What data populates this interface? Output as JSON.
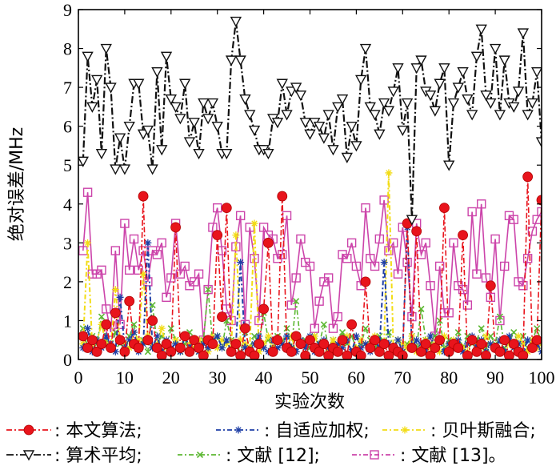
{
  "chart_data": {
    "type": "line",
    "title": "",
    "xlabel": "实验次数",
    "ylabel": "绝对误差/MHz",
    "xlim": [
      0,
      100
    ],
    "ylim": [
      0,
      9
    ],
    "xticks": [
      0,
      10,
      20,
      30,
      40,
      50,
      60,
      70,
      80,
      90,
      100
    ],
    "yticks": [
      0,
      1,
      2,
      3,
      4,
      5,
      6,
      7,
      8,
      9
    ],
    "grid": false,
    "legend_position": "bottom",
    "legend_separator": ":",
    "legend_terminator": "。",
    "legend_rows": [
      [
        "本文算法",
        "自适应加权",
        "贝叶斯融合"
      ],
      [
        "算术平均",
        "文献 [12]",
        "文献 [13]"
      ]
    ],
    "x": [
      1,
      2,
      3,
      4,
      5,
      6,
      7,
      8,
      9,
      10,
      11,
      12,
      13,
      14,
      15,
      16,
      17,
      18,
      19,
      20,
      21,
      22,
      23,
      24,
      25,
      26,
      27,
      28,
      29,
      30,
      31,
      32,
      33,
      34,
      35,
      36,
      37,
      38,
      39,
      40,
      41,
      42,
      43,
      44,
      45,
      46,
      47,
      48,
      49,
      50,
      51,
      52,
      53,
      54,
      55,
      56,
      57,
      58,
      59,
      60,
      61,
      62,
      63,
      64,
      65,
      66,
      67,
      68,
      69,
      70,
      71,
      72,
      73,
      74,
      75,
      76,
      77,
      78,
      79,
      80,
      81,
      82,
      83,
      84,
      85,
      86,
      87,
      88,
      89,
      90,
      91,
      92,
      93,
      94,
      95,
      96,
      97,
      98,
      99,
      100
    ],
    "series": [
      {
        "name": "本文算法",
        "color": "#e8141c",
        "marker": "circle-filled",
        "values": [
          0.6,
          0.3,
          0.5,
          0.2,
          0.4,
          0.9,
          0.3,
          1.2,
          0.5,
          0.2,
          1.5,
          0.4,
          0.3,
          4.2,
          0.5,
          1.0,
          0.3,
          0.1,
          0.4,
          0.2,
          3.4,
          0.3,
          0.6,
          0.2,
          0.5,
          0.3,
          0.1,
          0.5,
          0.4,
          3.2,
          1.1,
          3.9,
          0.2,
          0.4,
          0.1,
          0.8,
          0.2,
          0.1,
          0.4,
          1.3,
          3.0,
          0.2,
          0.5,
          4.2,
          0.3,
          0.2,
          0.6,
          0.4,
          0.1,
          0.5,
          0.3,
          0.2,
          0.4,
          0.1,
          0.3,
          0.2,
          0.5,
          0.1,
          0.9,
          0.2,
          0.1,
          2.0,
          0.3,
          0.5,
          0.2,
          0.4,
          0.1,
          0.3,
          0.2,
          0.1,
          3.5,
          0.3,
          3.3,
          0.2,
          0.4,
          0.1,
          0.3,
          0.5,
          3.9,
          0.2,
          0.4,
          0.3,
          3.2,
          0.1,
          0.5,
          0.2,
          0.4,
          0.1,
          1.9,
          0.3,
          0.2,
          0.5,
          0.1,
          0.4,
          0.2,
          0.1,
          4.7,
          0.3,
          0.5,
          4.1
        ]
      },
      {
        "name": "自适应加权",
        "color": "#1f3fa6",
        "marker": "star",
        "values": [
          0.3,
          0.8,
          0.2,
          0.5,
          0.3,
          0.6,
          0.4,
          0.2,
          1.6,
          0.3,
          0.5,
          0.7,
          0.2,
          0.4,
          3.0,
          0.3,
          0.6,
          0.2,
          0.5,
          0.3,
          0.4,
          0.2,
          0.6,
          0.3,
          0.5,
          0.2,
          0.4,
          0.3,
          0.5,
          0.6,
          0.3,
          0.5,
          0.2,
          0.4,
          2.5,
          0.3,
          0.2,
          0.4,
          0.6,
          0.3,
          0.2,
          0.5,
          0.3,
          0.4,
          0.6,
          0.3,
          0.2,
          0.5,
          0.3,
          0.6,
          0.2,
          0.4,
          0.5,
          0.3,
          0.2,
          0.4,
          0.3,
          0.5,
          0.2,
          0.6,
          0.3,
          0.4,
          0.2,
          0.5,
          0.3,
          2.5,
          0.4,
          0.3,
          0.5,
          0.2,
          3.4,
          0.3,
          0.5,
          0.4,
          0.2,
          0.6,
          0.3,
          0.5,
          0.2,
          0.4,
          0.3,
          0.5,
          0.2,
          0.4,
          0.6,
          0.3,
          0.5,
          0.2,
          0.4,
          0.3,
          0.5,
          0.2,
          0.6,
          0.3,
          0.4,
          0.2,
          0.5,
          0.3,
          0.4,
          0.2
        ]
      },
      {
        "name": "贝叶斯融合",
        "color": "#f2dc14",
        "marker": "star",
        "values": [
          0.4,
          3.0,
          0.3,
          0.5,
          0.9,
          0.4,
          0.3,
          1.8,
          0.5,
          0.4,
          0.3,
          0.7,
          0.5,
          2.2,
          0.6,
          0.3,
          0.4,
          0.8,
          0.3,
          0.2,
          0.5,
          0.3,
          0.6,
          0.4,
          0.3,
          0.5,
          0.4,
          0.2,
          0.6,
          0.3,
          0.5,
          0.4,
          0.3,
          3.2,
          0.5,
          0.4,
          0.3,
          3.5,
          0.2,
          0.4,
          0.6,
          0.3,
          0.5,
          0.4,
          0.3,
          0.6,
          0.2,
          0.4,
          0.3,
          0.5,
          0.6,
          0.3,
          0.4,
          0.2,
          0.5,
          0.3,
          0.4,
          0.6,
          0.2,
          0.3,
          0.5,
          0.4,
          0.3,
          0.6,
          0.2,
          0.4,
          4.8,
          0.3,
          0.5,
          0.4,
          0.3,
          0.6,
          0.2,
          0.4,
          0.5,
          0.3,
          0.4,
          0.2,
          0.6,
          0.3,
          0.5,
          0.4,
          0.3,
          0.2,
          0.5,
          0.4,
          0.3,
          0.6,
          0.4,
          0.3,
          0.5,
          0.2,
          0.4,
          0.3,
          0.6,
          0.4,
          0.2,
          0.5,
          0.3,
          0.4
        ]
      },
      {
        "name": "算术平均",
        "color": "#111111",
        "marker": "triangle-down",
        "values": [
          5.1,
          7.8,
          6.5,
          7.2,
          5.3,
          8.0,
          7.0,
          4.9,
          5.7,
          4.9,
          6.0,
          7.1,
          7.1,
          5.8,
          5.9,
          4.9,
          7.4,
          5.4,
          7.8,
          6.7,
          6.5,
          6.2,
          7.1,
          5.6,
          6.1,
          5.3,
          6.6,
          6.2,
          6.6,
          6.0,
          5.3,
          5.3,
          7.7,
          8.7,
          7.7,
          6.7,
          6.3,
          5.9,
          5.4,
          5.4,
          5.3,
          6.2,
          6.1,
          7.1,
          6.3,
          6.9,
          7.0,
          6.8,
          6.1,
          5.8,
          6.1,
          6.0,
          5.7,
          6.3,
          5.4,
          6.5,
          6.7,
          5.2,
          6.0,
          5.5,
          7.2,
          8.0,
          6.5,
          6.3,
          5.8,
          6.6,
          6.4,
          6.9,
          7.5,
          5.9,
          6.6,
          3.6,
          7.5,
          7.7,
          6.9,
          6.8,
          6.4,
          7.1,
          7.5,
          5.0,
          6.6,
          7.0,
          7.4,
          6.7,
          6.3,
          7.8,
          8.5,
          6.8,
          6.6,
          8.0,
          6.3,
          7.7,
          6.6,
          6.5,
          6.9,
          8.4,
          6.3,
          6.6,
          7.4,
          5.6
        ]
      },
      {
        "name": "文献 [12]",
        "color": "#5cb832",
        "marker": "cross",
        "values": [
          0.8,
          0.3,
          0.6,
          0.4,
          1.1,
          0.5,
          0.3,
          0.7,
          0.4,
          0.2,
          0.6,
          0.9,
          0.3,
          0.5,
          0.2,
          1.4,
          0.4,
          0.6,
          0.3,
          0.8,
          0.5,
          0.2,
          0.4,
          0.7,
          0.3,
          0.2,
          0.5,
          1.8,
          0.4,
          0.6,
          0.3,
          1.0,
          0.5,
          0.4,
          0.2,
          0.7,
          0.3,
          0.6,
          0.4,
          1.2,
          0.5,
          0.3,
          0.6,
          0.4,
          0.8,
          0.3,
          1.5,
          0.4,
          0.5,
          0.3,
          0.6,
          0.4,
          0.9,
          0.3,
          0.5,
          0.2,
          0.7,
          0.4,
          0.6,
          0.3,
          0.4,
          0.8,
          0.5,
          0.3,
          0.6,
          0.4,
          0.7,
          0.3,
          0.5,
          0.2,
          0.4,
          0.6,
          0.3,
          1.3,
          0.5,
          0.4,
          0.6,
          1.0,
          0.3,
          0.5,
          0.4,
          0.7,
          0.3,
          0.6,
          0.4,
          0.5,
          0.8,
          0.3,
          0.6,
          0.4,
          1.1,
          0.3,
          0.5,
          0.7,
          0.4,
          0.6,
          0.3,
          0.5,
          0.8,
          0.4
        ]
      },
      {
        "name": "文献 [13]",
        "color": "#cc44aa",
        "marker": "square-open",
        "values": [
          2.8,
          4.3,
          2.2,
          2.2,
          2.3,
          1.3,
          0.7,
          2.8,
          0.9,
          3.5,
          2.3,
          3.1,
          2.3,
          2.8,
          2.0,
          2.8,
          2.7,
          3.0,
          1.6,
          2.1,
          3.5,
          2.2,
          2.4,
          1.9,
          2.0,
          2.2,
          0.5,
          1.8,
          3.4,
          3.9,
          2.8,
          1.3,
          1.0,
          2.9,
          3.7,
          0.9,
          3.4,
          2.6,
          1.0,
          3.4,
          3.2,
          3.1,
          2.6,
          2.7,
          3.7,
          1.4,
          2.1,
          3.1,
          2.5,
          2.4,
          0.8,
          1.5,
          2.0,
          2.1,
          0.8,
          1.1,
          2.7,
          2.6,
          3.0,
          2.4,
          1.9,
          3.9,
          2.6,
          2.4,
          3.1,
          4.1,
          2.8,
          3.0,
          2.2,
          3.4,
          2.5,
          1.1,
          3.5,
          2.7,
          3.0,
          1.9,
          0.6,
          2.4,
          1.2,
          1.2,
          3.0,
          1.9,
          1.8,
          1.4,
          3.8,
          2.2,
          4.0,
          2.1,
          1.6,
          3.1,
          1.0,
          2.4,
          3.7,
          3.6,
          2.0,
          1.9,
          2.6,
          3.3,
          3.6,
          3.8
        ]
      }
    ]
  }
}
